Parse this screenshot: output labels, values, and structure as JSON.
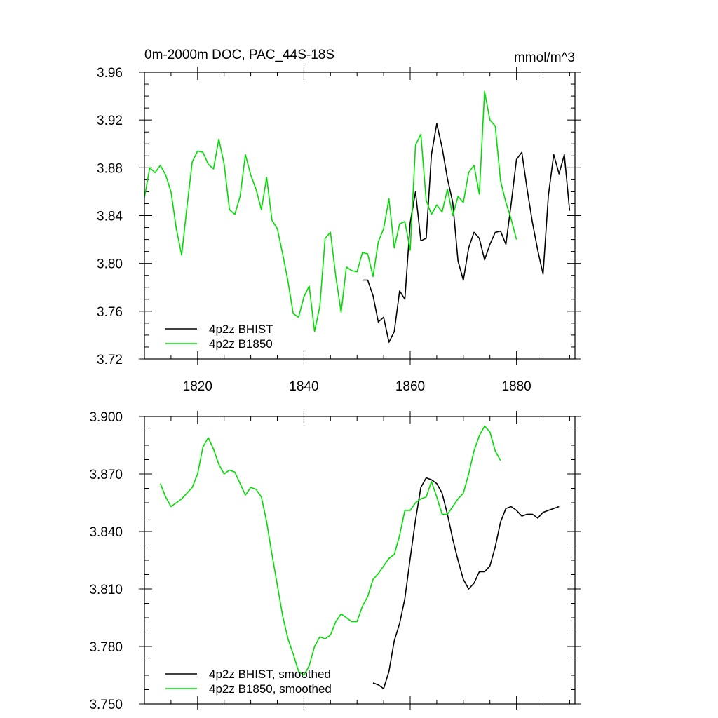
{
  "chart_data": [
    {
      "type": "line",
      "title_left": "0m-2000m DOC, PAC_44S-18S",
      "title_right": "mmol/m^3",
      "xlim": [
        1810,
        1891
      ],
      "ylim": [
        3.72,
        3.96
      ],
      "yticks": [
        "3.72",
        "3.76",
        "3.80",
        "3.84",
        "3.88",
        "3.92",
        "3.96"
      ],
      "xticks": [
        "1820",
        "1840",
        "1860",
        "1880"
      ],
      "legend_position": "bottom-left",
      "series": [
        {
          "name": "4p2z BHIST",
          "color": "#000000",
          "x": [
            1851,
            1852,
            1853,
            1854,
            1855,
            1856,
            1857,
            1858,
            1859,
            1860,
            1861,
            1862,
            1863,
            1864,
            1865,
            1866,
            1867,
            1868,
            1869,
            1870,
            1871,
            1872,
            1873,
            1874,
            1875,
            1876,
            1877,
            1878,
            1879,
            1880,
            1881,
            1882,
            1883,
            1884,
            1885,
            1886,
            1887,
            1888,
            1889,
            1890
          ],
          "y": [
            3.786,
            3.786,
            3.773,
            3.751,
            3.755,
            3.734,
            3.743,
            3.777,
            3.77,
            3.834,
            3.86,
            3.819,
            3.821,
            3.891,
            3.917,
            3.897,
            3.871,
            3.851,
            3.802,
            3.786,
            3.813,
            3.826,
            3.821,
            3.803,
            3.816,
            3.826,
            3.827,
            3.816,
            3.85,
            3.887,
            3.893,
            3.862,
            3.834,
            3.811,
            3.791,
            3.857,
            3.891,
            3.875,
            3.891,
            3.844
          ]
        },
        {
          "name": "4p2z B1850",
          "color": "#00dd00",
          "x": [
            1810,
            1811,
            1812,
            1813,
            1814,
            1815,
            1816,
            1817,
            1818,
            1819,
            1820,
            1821,
            1822,
            1823,
            1824,
            1825,
            1826,
            1827,
            1828,
            1829,
            1830,
            1831,
            1832,
            1833,
            1834,
            1835,
            1836,
            1837,
            1838,
            1839,
            1840,
            1841,
            1842,
            1843,
            1844,
            1845,
            1846,
            1847,
            1848,
            1849,
            1850,
            1851,
            1852,
            1853,
            1854,
            1855,
            1856,
            1857,
            1858,
            1859,
            1860,
            1861,
            1862,
            1863,
            1864,
            1865,
            1866,
            1867,
            1868,
            1869,
            1870,
            1871,
            1872,
            1873,
            1874,
            1875,
            1876,
            1877,
            1878,
            1879,
            1880
          ],
          "y": [
            3.855,
            3.88,
            3.876,
            3.882,
            3.874,
            3.86,
            3.829,
            3.807,
            3.847,
            3.885,
            3.894,
            3.893,
            3.883,
            3.879,
            3.904,
            3.883,
            3.845,
            3.841,
            3.856,
            3.891,
            3.874,
            3.862,
            3.845,
            3.872,
            3.836,
            3.829,
            3.808,
            3.785,
            3.758,
            3.755,
            3.772,
            3.781,
            3.743,
            3.764,
            3.821,
            3.826,
            3.789,
            3.759,
            3.797,
            3.794,
            3.793,
            3.809,
            3.808,
            3.789,
            3.818,
            3.829,
            3.854,
            3.813,
            3.833,
            3.835,
            3.811,
            3.899,
            3.908,
            3.853,
            3.841,
            3.849,
            3.843,
            3.862,
            3.84,
            3.856,
            3.851,
            3.876,
            3.882,
            3.858,
            3.944,
            3.92,
            3.915,
            3.869,
            3.851,
            3.837,
            3.82
          ]
        }
      ]
    },
    {
      "type": "line",
      "xlim": [
        1810,
        1891
      ],
      "ylim": [
        3.75,
        3.9
      ],
      "yticks": [
        "3.750",
        "3.780",
        "3.810",
        "3.840",
        "3.870",
        "3.900"
      ],
      "legend_position": "bottom-left",
      "series": [
        {
          "name": "4p2z BHIST, smoothed",
          "color": "#000000",
          "x": [
            1853,
            1854,
            1855,
            1856,
            1857,
            1858,
            1859,
            1860,
            1861,
            1862,
            1863,
            1864,
            1865,
            1866,
            1867,
            1868,
            1869,
            1870,
            1871,
            1872,
            1873,
            1874,
            1875,
            1876,
            1877,
            1878,
            1879,
            1880,
            1881,
            1882,
            1883,
            1884,
            1885,
            1886,
            1887,
            1888
          ],
          "y": [
            3.761,
            3.76,
            3.758,
            3.767,
            3.783,
            3.792,
            3.805,
            3.826,
            3.846,
            3.863,
            3.868,
            3.867,
            3.865,
            3.86,
            3.849,
            3.836,
            3.825,
            3.815,
            3.81,
            3.813,
            3.819,
            3.819,
            3.822,
            3.832,
            3.845,
            3.852,
            3.853,
            3.851,
            3.848,
            3.849,
            3.849,
            3.847,
            3.85,
            3.851,
            3.852,
            3.853
          ]
        },
        {
          "name": "4p2z B1850, smoothed",
          "color": "#00dd00",
          "x": [
            1813,
            1814,
            1815,
            1816,
            1817,
            1818,
            1819,
            1820,
            1821,
            1822,
            1823,
            1824,
            1825,
            1826,
            1827,
            1828,
            1829,
            1830,
            1831,
            1832,
            1833,
            1834,
            1835,
            1836,
            1837,
            1838,
            1839,
            1840,
            1841,
            1842,
            1843,
            1844,
            1845,
            1846,
            1847,
            1848,
            1849,
            1850,
            1851,
            1852,
            1853,
            1854,
            1855,
            1856,
            1857,
            1858,
            1859,
            1860,
            1861,
            1862,
            1863,
            1864,
            1865,
            1866,
            1867,
            1868,
            1869,
            1870,
            1871,
            1872,
            1873,
            1874,
            1875,
            1876,
            1877
          ],
          "y": [
            3.865,
            3.858,
            3.853,
            3.855,
            3.857,
            3.86,
            3.863,
            3.87,
            3.884,
            3.889,
            3.883,
            3.875,
            3.87,
            3.872,
            3.871,
            3.865,
            3.859,
            3.863,
            3.862,
            3.858,
            3.845,
            3.828,
            3.812,
            3.796,
            3.784,
            3.776,
            3.767,
            3.765,
            3.77,
            3.78,
            3.785,
            3.784,
            3.786,
            3.793,
            3.797,
            3.795,
            3.793,
            3.793,
            3.801,
            3.806,
            3.815,
            3.818,
            3.822,
            3.826,
            3.828,
            3.838,
            3.851,
            3.851,
            3.855,
            3.857,
            3.858,
            3.866,
            3.858,
            3.849,
            3.849,
            3.853,
            3.857,
            3.86,
            3.87,
            3.882,
            3.89,
            3.895,
            3.892,
            3.882,
            3.877
          ]
        }
      ]
    }
  ]
}
